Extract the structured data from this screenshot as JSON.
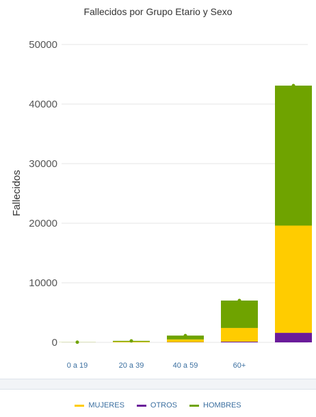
{
  "chart_data": {
    "type": "bar",
    "stacked": true,
    "title": "Fallecidos por Grupo Etario y Sexo",
    "xlabel": "",
    "ylabel": "Fallecidos",
    "ylim": [
      0,
      50000
    ],
    "yticks": [
      "0",
      "10000",
      "20000",
      "30000",
      "40000",
      "50000"
    ],
    "categories": [
      "0 a 19",
      "20 a 39",
      "40 a 59",
      "60+",
      ""
    ],
    "grid": true,
    "legend_position": "bottom",
    "series": [
      {
        "name": "OTROS",
        "color": "#6a1b9a",
        "values": [
          0,
          10,
          40,
          120,
          1600
        ]
      },
      {
        "name": "MUJERES",
        "color": "#ffcc00",
        "values": [
          10,
          90,
          450,
          2300,
          18000
        ]
      },
      {
        "name": "HOMBRES",
        "color": "#6fa300",
        "values": [
          20,
          150,
          650,
          4600,
          23500
        ]
      }
    ]
  },
  "legend": [
    {
      "label": "MUJERES",
      "color": "#ffcc00"
    },
    {
      "label": "OTROS",
      "color": "#6a1b9a"
    },
    {
      "label": "HOMBRES",
      "color": "#6fa300"
    }
  ]
}
